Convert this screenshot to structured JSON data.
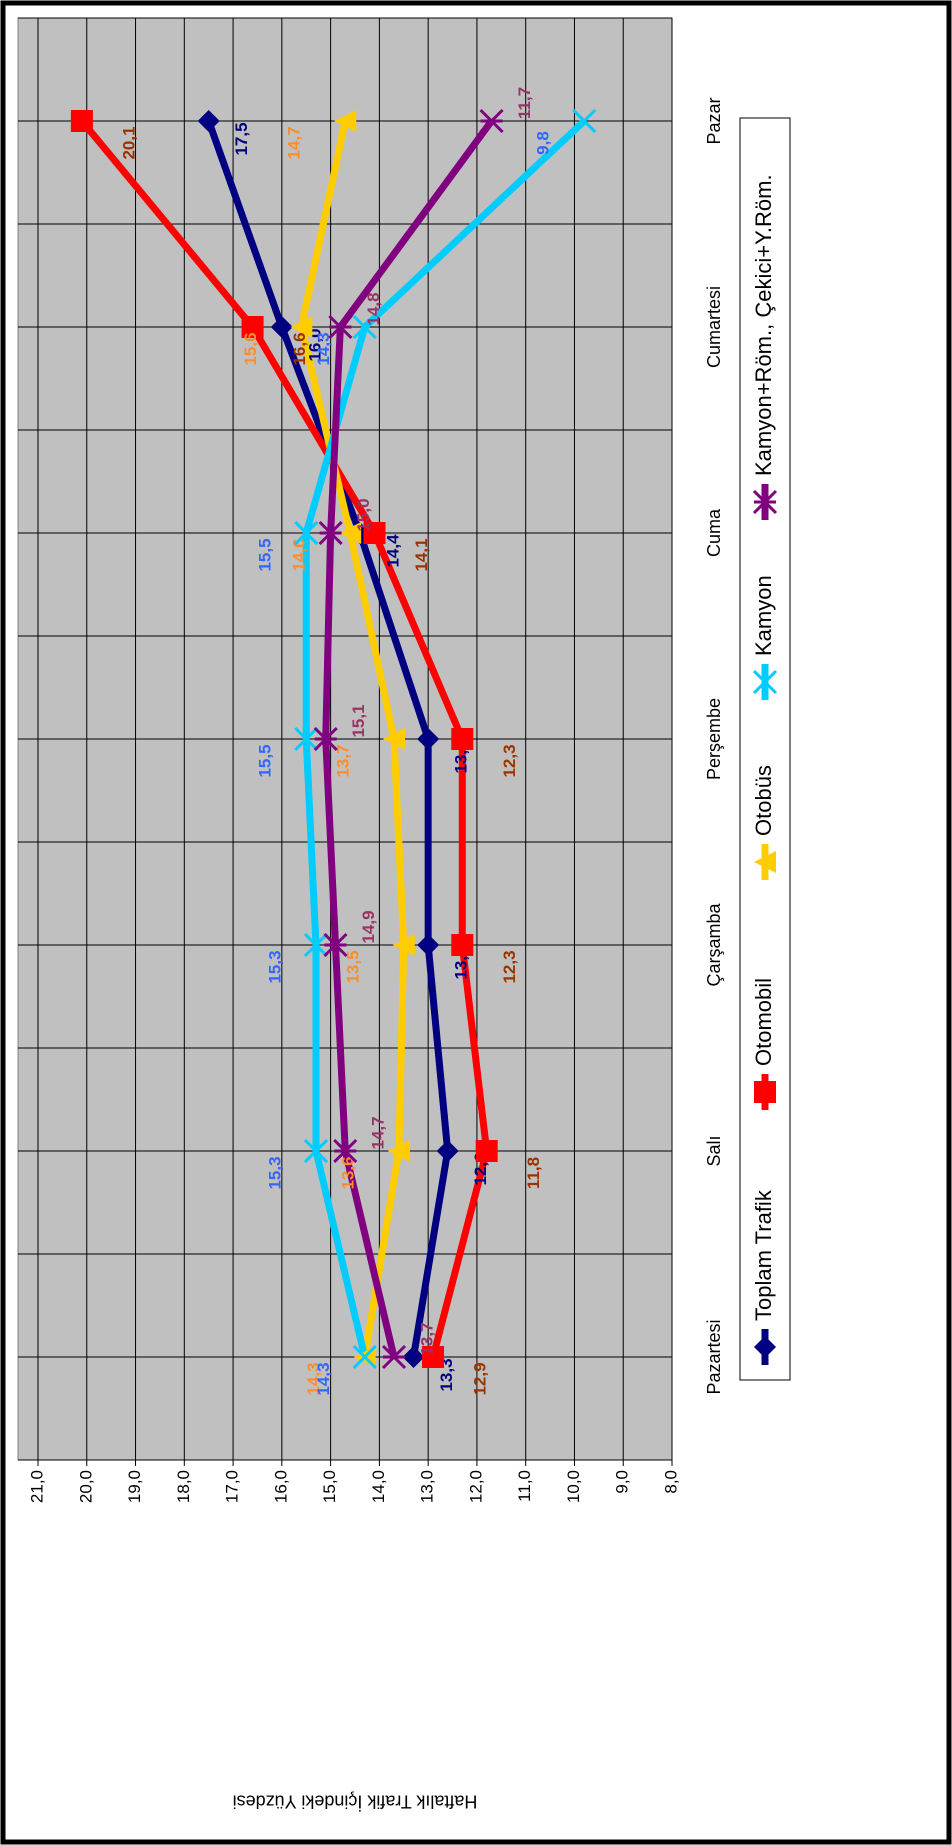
{
  "chart_data": {
    "type": "line",
    "y_label": "Haftalık Trafik İçindeki Yüzdesi",
    "categories": [
      "Pazartesi",
      "Salı",
      "Çarşamba",
      "Perşembe",
      "Cuma",
      "Cumartesi",
      "Pazar"
    ],
    "series": [
      {
        "name": "Toplam Trafik",
        "color": "#000080",
        "label_color": "#000080",
        "marker": "diamond",
        "values": [
          13.3,
          12.6,
          13.0,
          13.0,
          14.4,
          16.0,
          17.5
        ],
        "value_labels": [
          "13,3",
          "12,6",
          "13,0",
          "13,0",
          "14,4",
          "16,0",
          "17,5"
        ]
      },
      {
        "name": "Otomobil",
        "color": "#FF0000",
        "label_color": "#993300",
        "marker": "square",
        "values": [
          12.9,
          11.8,
          12.3,
          12.3,
          14.1,
          16.6,
          20.1
        ],
        "value_labels": [
          "12,9",
          "11,8",
          "12,3",
          "12,3",
          "14,1",
          "16,6",
          "20,1"
        ]
      },
      {
        "name": "Otobüs",
        "color": "#FFCC00",
        "label_color": "#FF8C2A",
        "marker": "triangle",
        "values": [
          14.3,
          13.6,
          13.5,
          13.7,
          14.6,
          15.6,
          14.7
        ],
        "value_labels": [
          "14,3",
          "13,6",
          "13,5",
          "13,7",
          "14,6",
          "15,6",
          "14,7"
        ]
      },
      {
        "name": "Kamyon",
        "color": "#00CCFF",
        "label_color": "#3366FF",
        "marker": "x",
        "values": [
          14.3,
          15.3,
          15.3,
          15.5,
          15.5,
          14.3,
          9.8
        ],
        "value_labels": [
          "14,3",
          "15,3",
          "15,3",
          "15,5",
          "15,5",
          "14,3",
          "9,8"
        ]
      },
      {
        "name": "Kamyon+Röm., Çekici+Y.Röm.",
        "color": "#800080",
        "label_color": "#993366",
        "marker": "star",
        "values": [
          13.7,
          14.7,
          14.9,
          15.1,
          15.0,
          14.8,
          11.7
        ],
        "value_labels": [
          "13,7",
          "14,7",
          "14,9",
          "15,1",
          "15,0",
          "14,8",
          "11,7"
        ]
      }
    ],
    "ylim": [
      8,
      21
    ],
    "yticks": [
      {
        "value": 8,
        "label": "8,0"
      },
      {
        "value": 9,
        "label": "9,0"
      },
      {
        "value": 10,
        "label": "10,0"
      },
      {
        "value": 11,
        "label": "11,0"
      },
      {
        "value": 12,
        "label": "12,0"
      },
      {
        "value": 13,
        "label": "13,0"
      },
      {
        "value": 14,
        "label": "14,0"
      },
      {
        "value": 15,
        "label": "15,0"
      },
      {
        "value": 16,
        "label": "16,0"
      },
      {
        "value": 17,
        "label": "17,0"
      },
      {
        "value": 18,
        "label": "18,0"
      },
      {
        "value": 19,
        "label": "19,0"
      },
      {
        "value": 20,
        "label": "20,0"
      },
      {
        "value": 21,
        "label": "21,0"
      }
    ],
    "grid": true,
    "legend": "bottom",
    "rotated": true
  }
}
